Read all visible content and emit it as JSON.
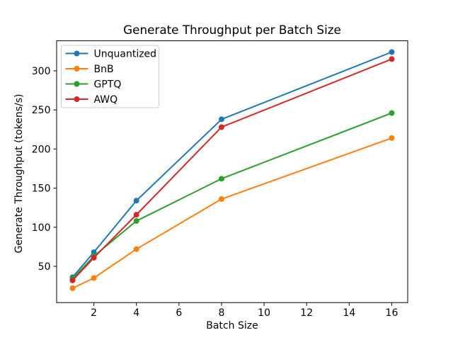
{
  "chart_data": {
    "type": "line",
    "title": "Generate Throughput per Batch Size",
    "xlabel": "Batch Size",
    "ylabel": "Generate Throughput (tokens/s)",
    "x": [
      1,
      2,
      4,
      8,
      16
    ],
    "series": [
      {
        "name": "Unquantized",
        "color": "#1f77b4",
        "values": [
          36,
          68,
          134,
          238,
          324
        ]
      },
      {
        "name": "BnB",
        "color": "#ff7f0e",
        "values": [
          22,
          35,
          72,
          136,
          214
        ]
      },
      {
        "name": "GPTQ",
        "color": "#2ca02c",
        "values": [
          34,
          63,
          108,
          162,
          246
        ]
      },
      {
        "name": "AWQ",
        "color": "#d62728",
        "values": [
          32,
          61,
          116,
          228,
          315
        ]
      }
    ],
    "xticks": [
      2,
      4,
      6,
      8,
      10,
      12,
      14,
      16
    ],
    "yticks": [
      50,
      100,
      150,
      200,
      250,
      300
    ],
    "xlim": [
      0.25,
      16.75
    ],
    "ylim": [
      3.6,
      338.4
    ],
    "marker": "o",
    "grid": false,
    "legend_position": "upper left",
    "background_color": "#ffffff",
    "axis_color": "#000000",
    "legend_border_color": "#cccccc"
  }
}
